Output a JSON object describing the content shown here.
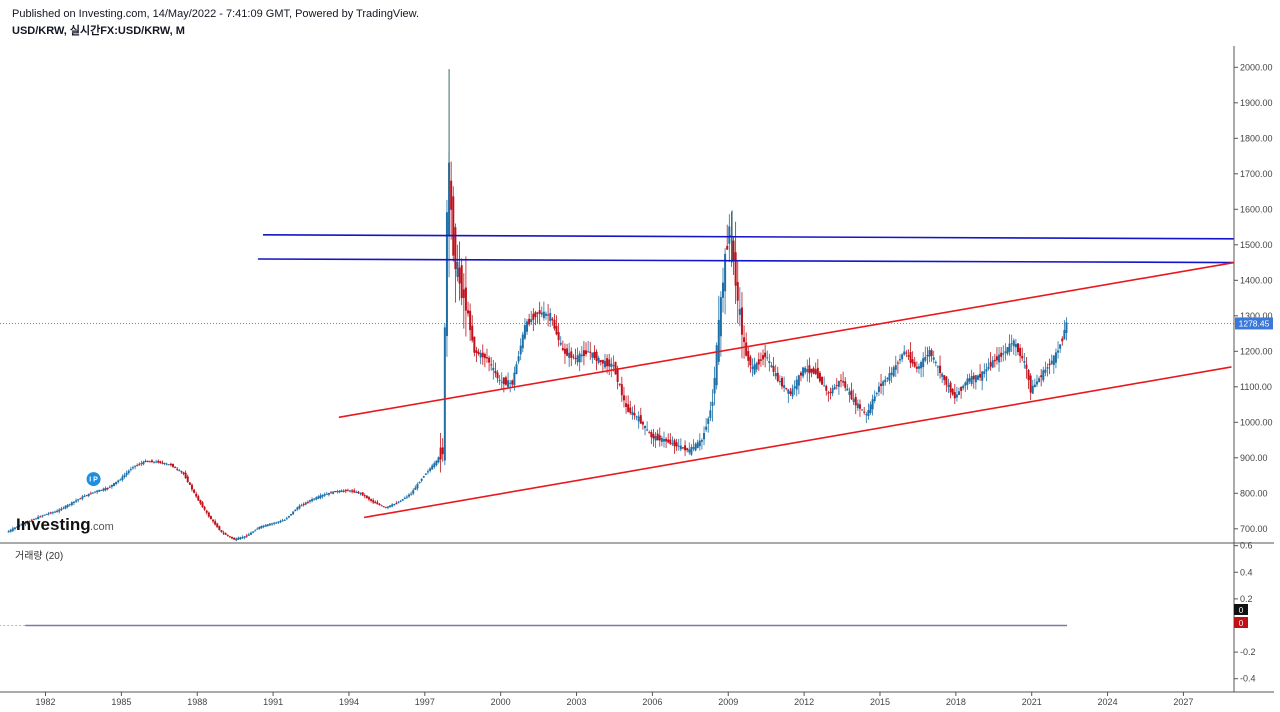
{
  "header": {
    "published": "Published on Investing.com, 14/May/2022 - 7:41:09 GMT, Powered by TradingView.",
    "symbol": "USD/KRW, 실시간FX:USD/KRW, M"
  },
  "logo": {
    "text_main": "Investing",
    "text_suffix": ".com"
  },
  "marker": {
    "label": "I P",
    "year": 1983.9,
    "value": 840
  },
  "volume_panel": {
    "title": "거래량 (20)",
    "badge_top": "0",
    "badge_bottom": "0"
  },
  "colors": {
    "up": "#1e6fa8",
    "down": "#c0101a",
    "trend_blue": "#1414c8",
    "trend_red": "#e8181e",
    "last_price_bg": "#3c78d8",
    "axis_text": "#444444"
  },
  "chart_data": {
    "type": "candlestick",
    "title": "USD/KRW, 실시간FX:USD/KRW, M",
    "last_price": 1278.45,
    "last_price_label": "1278.45",
    "x_range": [
      1980.2,
      2029.0
    ],
    "y_range": [
      660,
      2060
    ],
    "y_ticks": [
      "700.00",
      "800.00",
      "900.00",
      "1000.00",
      "1100.00",
      "1200.00",
      "1300.00",
      "1400.00",
      "1500.00",
      "1600.00",
      "1700.00",
      "1800.00",
      "1900.00",
      "2000.00"
    ],
    "x_ticks": [
      "1982",
      "1985",
      "1988",
      "1991",
      "1994",
      "1997",
      "2000",
      "2003",
      "2006",
      "2009",
      "2012",
      "2015",
      "2018",
      "2021",
      "2024",
      "2027"
    ],
    "series": [
      {
        "price_path": [
          [
            1980.5,
            690
          ],
          [
            1981.0,
            710
          ],
          [
            1981.5,
            725
          ],
          [
            1982.0,
            740
          ],
          [
            1982.5,
            750
          ],
          [
            1983.0,
            770
          ],
          [
            1983.5,
            790
          ],
          [
            1984.0,
            805
          ],
          [
            1984.5,
            815
          ],
          [
            1985.0,
            840
          ],
          [
            1985.5,
            875
          ],
          [
            1986.0,
            890
          ],
          [
            1986.5,
            888
          ],
          [
            1987.0,
            880
          ],
          [
            1987.5,
            855
          ],
          [
            1988.0,
            790
          ],
          [
            1988.5,
            735
          ],
          [
            1989.0,
            690
          ],
          [
            1989.5,
            670
          ],
          [
            1990.0,
            680
          ],
          [
            1990.5,
            705
          ],
          [
            1991.0,
            715
          ],
          [
            1991.5,
            725
          ],
          [
            1992.0,
            760
          ],
          [
            1992.5,
            780
          ],
          [
            1993.0,
            795
          ],
          [
            1993.5,
            805
          ],
          [
            1994.0,
            808
          ],
          [
            1994.5,
            800
          ],
          [
            1995.0,
            775
          ],
          [
            1995.5,
            760
          ],
          [
            1996.0,
            775
          ],
          [
            1996.5,
            800
          ],
          [
            1997.0,
            850
          ],
          [
            1997.5,
            890
          ],
          [
            1997.75,
            920
          ],
          [
            1997.92,
            1600
          ],
          [
            1998.0,
            1700
          ],
          [
            1998.15,
            1500
          ],
          [
            1998.4,
            1400
          ],
          [
            1998.7,
            1320
          ],
          [
            1999.0,
            1200
          ],
          [
            1999.5,
            1180
          ],
          [
            2000.0,
            1115
          ],
          [
            2000.5,
            1110
          ],
          [
            2001.0,
            1270
          ],
          [
            2001.5,
            1310
          ],
          [
            2002.0,
            1300
          ],
          [
            2002.5,
            1200
          ],
          [
            2003.0,
            1180
          ],
          [
            2003.5,
            1200
          ],
          [
            2004.0,
            1170
          ],
          [
            2004.5,
            1160
          ],
          [
            2005.0,
            1040
          ],
          [
            2005.5,
            1010
          ],
          [
            2006.0,
            960
          ],
          [
            2006.5,
            950
          ],
          [
            2007.0,
            935
          ],
          [
            2007.5,
            920
          ],
          [
            2008.0,
            950
          ],
          [
            2008.4,
            1050
          ],
          [
            2008.7,
            1300
          ],
          [
            2008.9,
            1450
          ],
          [
            2009.1,
            1560
          ],
          [
            2009.4,
            1350
          ],
          [
            2009.7,
            1200
          ],
          [
            2010.0,
            1150
          ],
          [
            2010.5,
            1190
          ],
          [
            2011.0,
            1120
          ],
          [
            2011.5,
            1080
          ],
          [
            2012.0,
            1150
          ],
          [
            2012.5,
            1140
          ],
          [
            2013.0,
            1080
          ],
          [
            2013.5,
            1120
          ],
          [
            2014.0,
            1060
          ],
          [
            2014.5,
            1020
          ],
          [
            2015.0,
            1100
          ],
          [
            2015.5,
            1140
          ],
          [
            2016.0,
            1200
          ],
          [
            2016.5,
            1150
          ],
          [
            2017.0,
            1200
          ],
          [
            2017.5,
            1130
          ],
          [
            2018.0,
            1070
          ],
          [
            2018.5,
            1120
          ],
          [
            2019.0,
            1130
          ],
          [
            2019.5,
            1170
          ],
          [
            2020.0,
            1200
          ],
          [
            2020.3,
            1230
          ],
          [
            2020.8,
            1160
          ],
          [
            2021.0,
            1090
          ],
          [
            2021.5,
            1140
          ],
          [
            2022.0,
            1190
          ],
          [
            2022.3,
            1245
          ],
          [
            2022.38,
            1278
          ]
        ]
      }
    ],
    "trend_lines": [
      {
        "name": "resistance-1",
        "color": "blue",
        "points": [
          [
            1990.6,
            1528
          ],
          [
            2029.0,
            1517
          ]
        ]
      },
      {
        "name": "resistance-2",
        "color": "blue",
        "points": [
          [
            1990.4,
            1460
          ],
          [
            2029.0,
            1450
          ]
        ]
      },
      {
        "name": "channel-upper",
        "color": "red",
        "points": [
          [
            1993.6,
            1014
          ],
          [
            2029.0,
            1450
          ]
        ]
      },
      {
        "name": "channel-lower",
        "color": "red",
        "points": [
          [
            1994.6,
            732
          ],
          [
            2028.9,
            1156
          ]
        ]
      }
    ],
    "volume": {
      "y_range": [
        -0.5,
        0.62
      ],
      "y_ticks": [
        "0.6",
        "0.4",
        "0.2",
        "-0.2",
        "-0.4"
      ],
      "x_range": [
        1981.2,
        2022.4
      ],
      "value": 0
    }
  }
}
